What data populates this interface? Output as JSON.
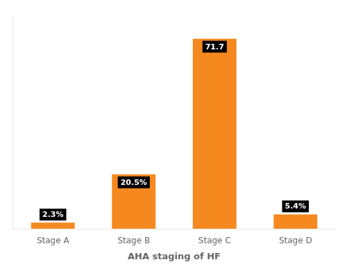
{
  "chart_data": {
    "type": "bar",
    "categories": [
      "Stage A",
      "Stage B",
      "Stage C",
      "Stage D"
    ],
    "values": [
      2.3,
      20.5,
      71.7,
      5.4
    ],
    "value_labels": [
      "2.3%",
      "20.5%",
      "71.7",
      "5.4%"
    ],
    "data_labels": true,
    "color": "#F5891F",
    "xlabel": "AHA staging of HF",
    "ylim": [
      0,
      80
    ],
    "grid": false,
    "tick_labels": "x"
  }
}
